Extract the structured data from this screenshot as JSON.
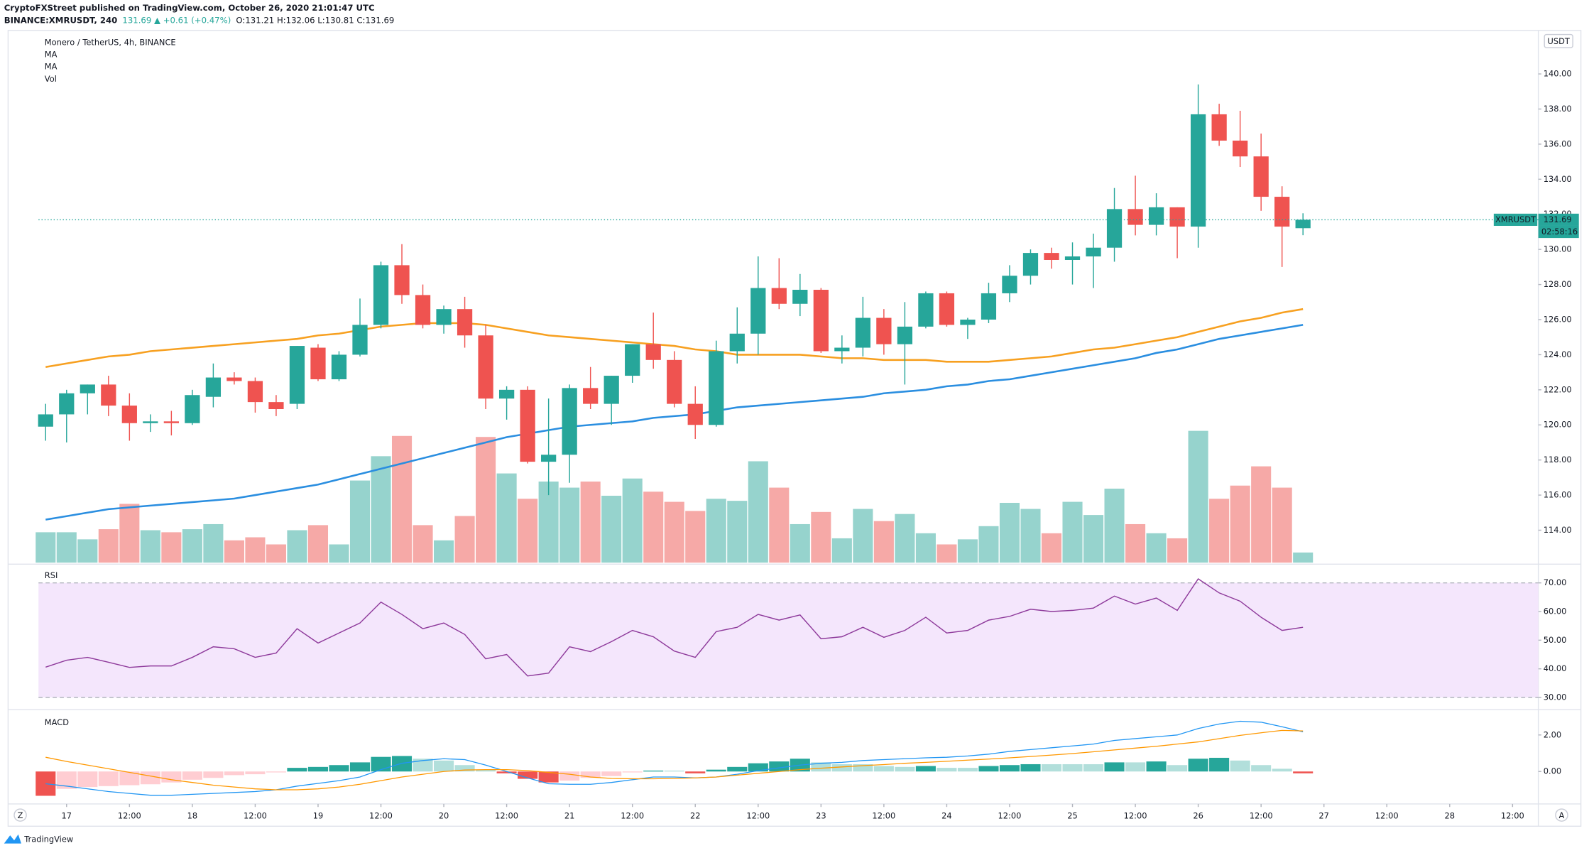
{
  "header": {
    "publisher": "CryptoFXStreet published on TradingView.com, October 26, 2020 21:01:47 UTC",
    "symbol": "BINANCE:XMRUSDT, 240",
    "change": "131.69 ▲ +0.61 (+0.47%)",
    "ohlc": "O:131.21 H:132.06 L:130.81 C:131.69"
  },
  "footer": {
    "brand": "TradingView",
    "left_button": "Z",
    "right_button": "A"
  },
  "chart_data": {
    "type": "candlestick",
    "title": "Monero / TetherUS, 4h, BINANCE",
    "currency": "USDT",
    "up_color": "#26a69a",
    "down_color": "#ef5350",
    "open": [
      119.9,
      120.6,
      121.8,
      122.3,
      121.1,
      120.1,
      120.2,
      120.1,
      121.6,
      122.7,
      122.5,
      121.3,
      121.2,
      124.4,
      122.6,
      124.0,
      125.7,
      129.1,
      127.4,
      125.7,
      126.6,
      125.1,
      121.5,
      122.0,
      117.9,
      118.3,
      122.1,
      121.2,
      122.8,
      124.6,
      123.7,
      121.2,
      120.0,
      124.2,
      125.2,
      127.8,
      126.9,
      127.7,
      124.2,
      124.4,
      126.1,
      124.6,
      125.6,
      127.5,
      125.7,
      126.0,
      127.5,
      128.5,
      129.8,
      129.4,
      129.6,
      130.1,
      132.3,
      131.4,
      132.4,
      131.3,
      137.7,
      136.2,
      135.3,
      133.0,
      131.21
    ],
    "high": [
      121.2,
      122.0,
      122.3,
      122.8,
      121.8,
      120.6,
      120.8,
      122.0,
      123.5,
      123.0,
      122.7,
      121.7,
      124.5,
      124.6,
      124.2,
      127.2,
      129.3,
      130.3,
      128.0,
      126.8,
      127.3,
      125.7,
      122.2,
      122.2,
      121.5,
      122.3,
      123.3,
      122.8,
      124.6,
      126.4,
      124.2,
      122.2,
      124.8,
      126.7,
      129.6,
      129.5,
      128.6,
      127.8,
      125.1,
      127.3,
      126.6,
      127.0,
      127.6,
      127.6,
      126.1,
      128.1,
      129.1,
      130.0,
      130.1,
      130.4,
      130.9,
      133.5,
      134.2,
      133.2,
      132.4,
      139.4,
      138.3,
      137.9,
      136.6,
      133.6,
      132.06
    ],
    "low": [
      119.1,
      119.0,
      120.6,
      120.5,
      119.1,
      119.6,
      119.4,
      120.0,
      121.0,
      122.3,
      120.7,
      120.5,
      120.9,
      122.5,
      122.5,
      123.9,
      125.5,
      126.9,
      125.5,
      125.2,
      124.4,
      120.9,
      120.3,
      117.8,
      116.0,
      116.7,
      120.9,
      120.0,
      122.4,
      123.2,
      121.0,
      119.2,
      119.9,
      123.5,
      124.0,
      126.6,
      126.2,
      124.1,
      123.5,
      123.9,
      124.0,
      122.3,
      125.5,
      125.6,
      124.9,
      125.8,
      127.0,
      128.0,
      128.9,
      128.0,
      127.8,
      129.3,
      130.8,
      130.8,
      129.5,
      130.1,
      135.9,
      134.7,
      132.2,
      129.0,
      130.81
    ],
    "close": [
      120.6,
      121.8,
      122.3,
      121.1,
      120.1,
      120.2,
      120.1,
      121.7,
      122.7,
      122.5,
      121.3,
      120.9,
      124.5,
      122.6,
      124.0,
      125.7,
      129.1,
      127.4,
      125.7,
      126.6,
      125.1,
      121.5,
      122.0,
      117.9,
      118.3,
      122.1,
      121.2,
      122.8,
      124.6,
      123.7,
      121.2,
      120.0,
      124.2,
      125.2,
      127.8,
      126.9,
      127.7,
      124.2,
      124.4,
      126.1,
      124.6,
      125.6,
      127.5,
      125.7,
      126.0,
      127.5,
      128.5,
      129.8,
      129.4,
      129.6,
      130.1,
      132.3,
      131.4,
      132.4,
      131.3,
      137.7,
      136.2,
      135.3,
      133.0,
      131.3,
      131.69
    ],
    "xlim": [
      -0.34,
      71.23
    ],
    "xticks": [
      {
        "value": 1,
        "label": "17"
      },
      {
        "value": 4,
        "label": "12:00"
      },
      {
        "value": 7,
        "label": "18"
      },
      {
        "value": 10,
        "label": "12:00"
      },
      {
        "value": 13,
        "label": "19"
      },
      {
        "value": 16,
        "label": "12:00"
      },
      {
        "value": 19,
        "label": "20"
      },
      {
        "value": 22,
        "label": "12:00"
      },
      {
        "value": 25,
        "label": "21"
      },
      {
        "value": 28,
        "label": "12:00"
      },
      {
        "value": 31,
        "label": "22"
      },
      {
        "value": 34,
        "label": "12:00"
      },
      {
        "value": 37,
        "label": "23"
      },
      {
        "value": 40,
        "label": "12:00"
      },
      {
        "value": 43,
        "label": "24"
      },
      {
        "value": 46,
        "label": "12:00"
      },
      {
        "value": 49,
        "label": "25"
      },
      {
        "value": 52,
        "label": "12:00"
      },
      {
        "value": 55,
        "label": "26"
      },
      {
        "value": 58,
        "label": "12:00"
      },
      {
        "value": 61,
        "label": "27"
      },
      {
        "value": 64,
        "label": "12:00"
      },
      {
        "value": 67,
        "label": "28"
      },
      {
        "value": 70,
        "label": "12:00"
      }
    ],
    "ylim": [
      112.15,
      142.48
    ],
    "yticks": [
      {
        "value": 114,
        "label": "114.00"
      },
      {
        "value": 116,
        "label": "116.00"
      },
      {
        "value": 118,
        "label": "118.00"
      },
      {
        "value": 120,
        "label": "120.00"
      },
      {
        "value": 122,
        "label": "122.00"
      },
      {
        "value": 124,
        "label": "124.00"
      },
      {
        "value": 126,
        "label": "126.00"
      },
      {
        "value": 128,
        "label": "128.00"
      },
      {
        "value": 130,
        "label": "130.00"
      },
      {
        "value": 132,
        "label": "132.00"
      },
      {
        "value": 134,
        "label": "134.00"
      },
      {
        "value": 136,
        "label": "136.00"
      },
      {
        "value": 138,
        "label": "138.00"
      },
      {
        "value": 140,
        "label": "140.00"
      }
    ],
    "last_price": 131.69,
    "last_price_symbol": "XMRUSDT",
    "countdown": "02:58:16",
    "moving_averages": [
      {
        "name": "MA",
        "color": "#f7a020",
        "values": [
          123.3,
          123.5,
          123.7,
          123.9,
          124.0,
          124.2,
          124.3,
          124.4,
          124.5,
          124.6,
          124.7,
          124.8,
          124.9,
          125.1,
          125.2,
          125.4,
          125.6,
          125.7,
          125.8,
          125.8,
          125.8,
          125.7,
          125.5,
          125.3,
          125.1,
          125.0,
          124.9,
          124.8,
          124.7,
          124.6,
          124.5,
          124.3,
          124.2,
          124.0,
          124.0,
          124.0,
          124.0,
          123.9,
          123.8,
          123.8,
          123.7,
          123.7,
          123.7,
          123.6,
          123.6,
          123.6,
          123.7,
          123.8,
          123.9,
          124.1,
          124.3,
          124.4,
          124.6,
          124.8,
          125.0,
          125.3,
          125.6,
          125.9,
          126.1,
          126.4,
          126.6
        ]
      },
      {
        "name": "MA",
        "color": "#2a8ee0",
        "values": [
          114.6,
          114.8,
          115.0,
          115.2,
          115.3,
          115.4,
          115.5,
          115.6,
          115.7,
          115.8,
          116.0,
          116.2,
          116.4,
          116.6,
          116.9,
          117.2,
          117.5,
          117.8,
          118.1,
          118.4,
          118.7,
          119.0,
          119.3,
          119.5,
          119.7,
          119.9,
          120.0,
          120.1,
          120.2,
          120.4,
          120.5,
          120.6,
          120.8,
          121.0,
          121.1,
          121.2,
          121.3,
          121.4,
          121.5,
          121.6,
          121.8,
          121.9,
          122.0,
          122.2,
          122.3,
          122.5,
          122.6,
          122.8,
          123.0,
          123.2,
          123.4,
          123.6,
          123.8,
          124.1,
          124.3,
          124.6,
          124.9,
          125.1,
          125.3,
          125.5,
          125.7
        ]
      }
    ],
    "volume": {
      "name": "Vol",
      "up_color": "#96d3cd",
      "down_color": "#f6a9a7",
      "ylim": [
        0,
        525
      ],
      "values": [
        30,
        30,
        23,
        33,
        58,
        32,
        30,
        33,
        38,
        22,
        25,
        18,
        32,
        37,
        18,
        81,
        105,
        125,
        37,
        22,
        46,
        124,
        88,
        63,
        80,
        74,
        80,
        66,
        83,
        70,
        60,
        51,
        63,
        61,
        100,
        74,
        38,
        50,
        24,
        53,
        41,
        48,
        29,
        18,
        23,
        36,
        59,
        53,
        29,
        60,
        47,
        73,
        38,
        29,
        24,
        130,
        63,
        76,
        95,
        74,
        10
      ]
    },
    "rsi": {
      "name": "RSI",
      "color": "#8e3a9b",
      "band_color": "#f4e6fc",
      "band": [
        30,
        70
      ],
      "ylim": [
        26.1,
        76.0
      ],
      "yticks": [
        {
          "value": 30,
          "label": "30.00"
        },
        {
          "value": 40,
          "label": "40.00"
        },
        {
          "value": 50,
          "label": "50.00"
        },
        {
          "value": 60,
          "label": "60.00"
        },
        {
          "value": 70,
          "label": "70.00"
        }
      ],
      "values": [
        40.6,
        43,
        44,
        42.3,
        40.5,
        41,
        41,
        44,
        47.7,
        47,
        44,
        45.5,
        54,
        49,
        52.5,
        56,
        63.3,
        59,
        54,
        56,
        52,
        43.5,
        45,
        37.5,
        38.5,
        47.7,
        46,
        49.5,
        53.4,
        51.2,
        46.2,
        44,
        53,
        54.5,
        59,
        57,
        58.8,
        50.5,
        51.2,
        54.5,
        51,
        53.4,
        58,
        52.5,
        53.4,
        57,
        58.3,
        60.8,
        60,
        60.4,
        61.2,
        65.4,
        62.6,
        64.7,
        60.4,
        71.4,
        66.5,
        63.6,
        58,
        53.4,
        54.5
      ]
    },
    "macd": {
      "name": "MACD",
      "ylim": [
        -1.72,
        3.33
      ],
      "yticks": [
        {
          "value": 0,
          "label": "0.00"
        },
        {
          "value": 2,
          "label": "2.00"
        }
      ],
      "histogram": {
        "colors": [
          "#26a69a",
          "#b2dfdb",
          "#ffcdd2",
          "#ef5350"
        ],
        "values": [
          -1.33,
          -0.95,
          -0.85,
          -0.8,
          -0.75,
          -0.7,
          -0.6,
          -0.45,
          -0.35,
          -0.2,
          -0.15,
          -0.05,
          0.2,
          0.25,
          0.35,
          0.5,
          0.8,
          0.85,
          0.7,
          0.6,
          0.35,
          0.1,
          -0.1,
          -0.4,
          -0.6,
          -0.5,
          -0.35,
          -0.25,
          -0.05,
          0.05,
          0.05,
          -0.1,
          0.1,
          0.25,
          0.45,
          0.55,
          0.7,
          0.5,
          0.4,
          0.4,
          0.3,
          0.25,
          0.3,
          0.2,
          0.2,
          0.3,
          0.35,
          0.4,
          0.4,
          0.4,
          0.4,
          0.5,
          0.5,
          0.55,
          0.35,
          0.7,
          0.75,
          0.6,
          0.35,
          0.15,
          -0.1
        ]
      },
      "macd_line": {
        "color": "#2196f3",
        "values": [
          -0.67,
          -0.8,
          -0.95,
          -1.1,
          -1.2,
          -1.3,
          -1.3,
          -1.25,
          -1.2,
          -1.15,
          -1.1,
          -1.0,
          -0.8,
          -0.65,
          -0.5,
          -0.3,
          0.1,
          0.45,
          0.6,
          0.7,
          0.65,
          0.35,
          0.0,
          -0.35,
          -0.67,
          -0.7,
          -0.7,
          -0.6,
          -0.45,
          -0.3,
          -0.3,
          -0.35,
          -0.3,
          -0.15,
          0.05,
          0.2,
          0.35,
          0.45,
          0.5,
          0.6,
          0.65,
          0.7,
          0.75,
          0.78,
          0.85,
          0.95,
          1.1,
          1.2,
          1.3,
          1.4,
          1.5,
          1.7,
          1.8,
          1.9,
          2.0,
          2.35,
          2.6,
          2.75,
          2.7,
          2.45,
          2.17
        ]
      },
      "signal_line": {
        "color": "#ff9800",
        "values": [
          0.78,
          0.55,
          0.35,
          0.15,
          -0.05,
          -0.25,
          -0.45,
          -0.6,
          -0.75,
          -0.85,
          -0.95,
          -1.0,
          -1.0,
          -0.95,
          -0.85,
          -0.7,
          -0.5,
          -0.3,
          -0.15,
          0.0,
          0.08,
          0.1,
          0.1,
          0.05,
          -0.05,
          -0.15,
          -0.3,
          -0.38,
          -0.4,
          -0.4,
          -0.38,
          -0.35,
          -0.3,
          -0.2,
          -0.1,
          0.0,
          0.1,
          0.18,
          0.25,
          0.32,
          0.38,
          0.45,
          0.5,
          0.56,
          0.62,
          0.68,
          0.75,
          0.82,
          0.9,
          0.98,
          1.08,
          1.18,
          1.28,
          1.38,
          1.5,
          1.62,
          1.8,
          1.98,
          2.12,
          2.25,
          2.22
        ]
      }
    }
  }
}
